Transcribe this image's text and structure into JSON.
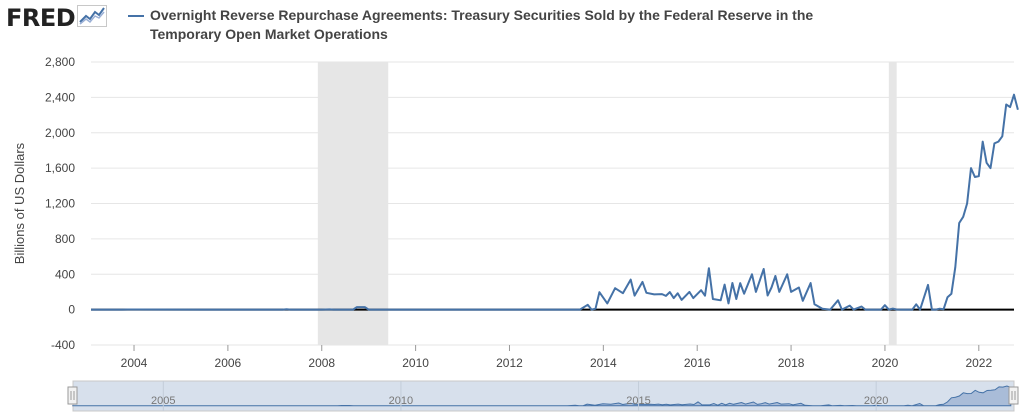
{
  "brand": {
    "logo_text": "FRED",
    "logo_icon": "fred-chart-logo-icon"
  },
  "colors": {
    "series": "#4572a7",
    "recession": "#e6e6e6",
    "zero_line": "#000000",
    "grid": "#e6e6e6"
  },
  "chart_data": {
    "type": "line",
    "title": "Overnight Reverse Repurchase Agreements: Treasury Securities Sold by the Federal Reserve in the Temporary Open Market Operations",
    "xlabel": "",
    "ylabel": "Billions of US Dollars",
    "ylim": [
      -400,
      2800
    ],
    "yticks": [
      -400,
      0,
      400,
      800,
      1200,
      1600,
      2000,
      2400,
      2800
    ],
    "ytick_labels": [
      "-400",
      "0",
      "400",
      "800",
      "1,200",
      "1,600",
      "2,000",
      "2,400",
      "2,800"
    ],
    "xlim": [
      "2003-02",
      "2022-10"
    ],
    "xticks": [
      "2004",
      "2006",
      "2008",
      "2010",
      "2012",
      "2014",
      "2016",
      "2018",
      "2020",
      "2022"
    ],
    "grid": true,
    "zero_line": true,
    "recessions": [
      {
        "start": "2007-12",
        "end": "2009-06"
      },
      {
        "start": "2020-02",
        "end": "2020-04"
      }
    ],
    "navigator_labels": [
      "2005",
      "2010",
      "2015",
      "2020"
    ],
    "series": [
      {
        "name": "Overnight Reverse Repurchase Agreements: Treasury Securities Sold by the Federal Reserve in the Temporary Open Market Operations",
        "points": [
          [
            "2003-02",
            0
          ],
          [
            "2003-10",
            0
          ],
          [
            "2004-01",
            1
          ],
          [
            "2005-06",
            0
          ],
          [
            "2007-03",
            0
          ],
          [
            "2007-04",
            4
          ],
          [
            "2007-05",
            0
          ],
          [
            "2008-01",
            0
          ],
          [
            "2008-03",
            3
          ],
          [
            "2008-04",
            0
          ],
          [
            "2008-09",
            0
          ],
          [
            "2008-10",
            28
          ],
          [
            "2008-11",
            28
          ],
          [
            "2008-12",
            28
          ],
          [
            "2009-01",
            0
          ],
          [
            "2013-07",
            0
          ],
          [
            "2013-09",
            55
          ],
          [
            "2013-10",
            0
          ],
          [
            "2013-11",
            10
          ],
          [
            "2013-12",
            197
          ],
          [
            "2014-02",
            70
          ],
          [
            "2014-04",
            242
          ],
          [
            "2014-06",
            186
          ],
          [
            "2014-08",
            339
          ],
          [
            "2014-09",
            159
          ],
          [
            "2014-11",
            313
          ],
          [
            "2014-12",
            190
          ],
          [
            "2015-02",
            172
          ],
          [
            "2015-04",
            175
          ],
          [
            "2015-05",
            155
          ],
          [
            "2015-06",
            198
          ],
          [
            "2015-07",
            130
          ],
          [
            "2015-08",
            185
          ],
          [
            "2015-09",
            110
          ],
          [
            "2015-11",
            200
          ],
          [
            "2015-12",
            130
          ],
          [
            "2016-02",
            220
          ],
          [
            "2016-03",
            157
          ],
          [
            "2016-04",
            468
          ],
          [
            "2016-05",
            120
          ],
          [
            "2016-07",
            105
          ],
          [
            "2016-08",
            283
          ],
          [
            "2016-09",
            70
          ],
          [
            "2016-10",
            301
          ],
          [
            "2016-11",
            120
          ],
          [
            "2016-12",
            300
          ],
          [
            "2017-01",
            180
          ],
          [
            "2017-03",
            400
          ],
          [
            "2017-04",
            200
          ],
          [
            "2017-06",
            459
          ],
          [
            "2017-07",
            160
          ],
          [
            "2017-08",
            250
          ],
          [
            "2017-09",
            380
          ],
          [
            "2017-10",
            200
          ],
          [
            "2017-12",
            400
          ],
          [
            "2018-01",
            200
          ],
          [
            "2018-03",
            250
          ],
          [
            "2018-04",
            100
          ],
          [
            "2018-06",
            300
          ],
          [
            "2018-07",
            60
          ],
          [
            "2018-09",
            10
          ],
          [
            "2018-11",
            0
          ],
          [
            "2019-01",
            105
          ],
          [
            "2019-02",
            0
          ],
          [
            "2019-04",
            45
          ],
          [
            "2019-05",
            0
          ],
          [
            "2019-07",
            35
          ],
          [
            "2019-08",
            0
          ],
          [
            "2019-12",
            0
          ],
          [
            "2020-01",
            50
          ],
          [
            "2020-02",
            0
          ],
          [
            "2020-03",
            12
          ],
          [
            "2020-04",
            1
          ],
          [
            "2020-05",
            0
          ],
          [
            "2020-06",
            0
          ],
          [
            "2020-08",
            0
          ],
          [
            "2020-09",
            60
          ],
          [
            "2020-10",
            0
          ],
          [
            "2020-12",
            280
          ],
          [
            "2021-01",
            0
          ],
          [
            "2021-02",
            0
          ],
          [
            "2021-03",
            10
          ],
          [
            "2021-04",
            5
          ],
          [
            "2021-05",
            140
          ],
          [
            "2021-06",
            180
          ],
          [
            "2021-07",
            480
          ],
          [
            "2021-08",
            980
          ],
          [
            "2021-09",
            1050
          ],
          [
            "2021-10",
            1200
          ],
          [
            "2021-11",
            1600
          ],
          [
            "2021-12",
            1500
          ],
          [
            "2022-01",
            1510
          ],
          [
            "2022-02",
            1900
          ],
          [
            "2022-03",
            1660
          ],
          [
            "2022-04",
            1600
          ],
          [
            "2022-05",
            1880
          ],
          [
            "2022-06",
            1900
          ],
          [
            "2022-07",
            1960
          ],
          [
            "2022-08",
            2320
          ],
          [
            "2022-09",
            2290
          ],
          [
            "2022-10",
            2430
          ],
          [
            "2022-11",
            2260
          ]
        ]
      }
    ]
  }
}
